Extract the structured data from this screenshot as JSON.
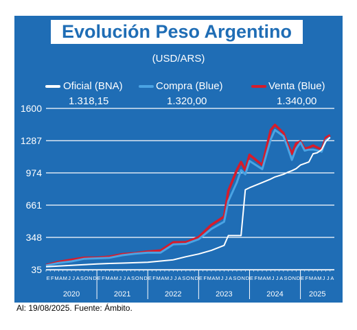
{
  "title": "Evolución Peso Argentino",
  "unit": "(USD/ARS)",
  "footer": "Al: 19/08/2025. Fuente: Ámbito.",
  "colors": {
    "panel": "#1f6db5",
    "oficial": "#ffffff",
    "compra": "#4aa3e3",
    "venta": "#d61c2b",
    "grid": "#ffffff"
  },
  "chart_data": {
    "type": "line",
    "ylim": [
      35,
      1600
    ],
    "yticks": [
      35,
      348,
      661,
      974,
      1287,
      1600
    ],
    "grid": true,
    "legend_placement": "top",
    "month_letters": [
      "E",
      "F",
      "M",
      "A",
      "M",
      "J",
      "J",
      "A",
      "S",
      "O",
      "N",
      "D"
    ],
    "years": [
      "2020",
      "2021",
      "2022",
      "2023",
      "2024",
      "2025"
    ],
    "x": [
      "2020-01",
      "2020-04",
      "2020-07",
      "2020-10",
      "2021-01",
      "2021-04",
      "2021-07",
      "2021-10",
      "2022-01",
      "2022-04",
      "2022-07",
      "2022-10",
      "2023-01",
      "2023-04",
      "2023-07",
      "2023-08",
      "2023-10",
      "2023-11",
      "2023-12",
      "2024-01",
      "2024-04",
      "2024-06",
      "2024-07",
      "2024-09",
      "2024-10",
      "2024-11",
      "2024-12",
      "2025-01",
      "2025-02",
      "2025-03",
      "2025-04",
      "2025-05",
      "2025-06",
      "2025-07",
      "2025-08"
    ],
    "series": [
      {
        "name": "Oficial (BNA)",
        "latest": "1.318,15",
        "values": [
          63,
          70,
          76,
          83,
          90,
          95,
          98,
          102,
          107,
          118,
          130,
          160,
          187,
          222,
          270,
          365,
          365,
          365,
          810,
          830,
          880,
          915,
          935,
          960,
          980,
          995,
          1015,
          1050,
          1065,
          1080,
          1160,
          1170,
          1200,
          1280,
          1318
        ]
      },
      {
        "name": "Compra (Blue)",
        "latest": "1.320,00",
        "values": [
          75,
          100,
          115,
          140,
          145,
          150,
          175,
          190,
          200,
          200,
          280,
          285,
          330,
          430,
          500,
          700,
          880,
          1000,
          960,
          1090,
          1010,
          1300,
          1390,
          1330,
          1220,
          1100,
          1210,
          1270,
          1190,
          1200,
          1200,
          1190,
          1180,
          1290,
          1320
        ]
      },
      {
        "name": "Venta (Blue)",
        "latest": "1.340,00",
        "values": [
          78,
          110,
          130,
          150,
          150,
          160,
          185,
          195,
          210,
          220,
          300,
          300,
          350,
          470,
          550,
          800,
          1000,
          1080,
          1000,
          1150,
          1050,
          1390,
          1440,
          1360,
          1250,
          1160,
          1260,
          1280,
          1210,
          1220,
          1240,
          1220,
          1200,
          1315,
          1340
        ]
      }
    ]
  }
}
